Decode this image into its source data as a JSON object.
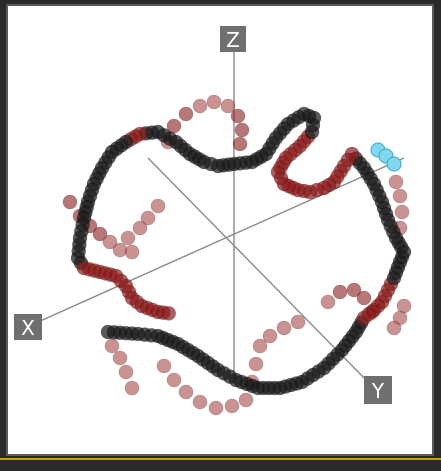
{
  "viewer": {
    "axes": {
      "x_label": "X",
      "y_label": "Y",
      "z_label": "Z"
    },
    "colors": {
      "background": "#ffffff",
      "axis_line": "#8a8a8a",
      "axis_label_bg": "#6f6f6f",
      "axis_label_text": "#ffffff",
      "bead_dark": "#1a1a1a",
      "bead_red": "#8b1a1a",
      "bead_light_red": "#a84a4a",
      "bead_highlight": "#7fd8f0"
    },
    "structure": {
      "type": "chromosome-bead-chain",
      "highlighted_bead_count": 3
    }
  }
}
